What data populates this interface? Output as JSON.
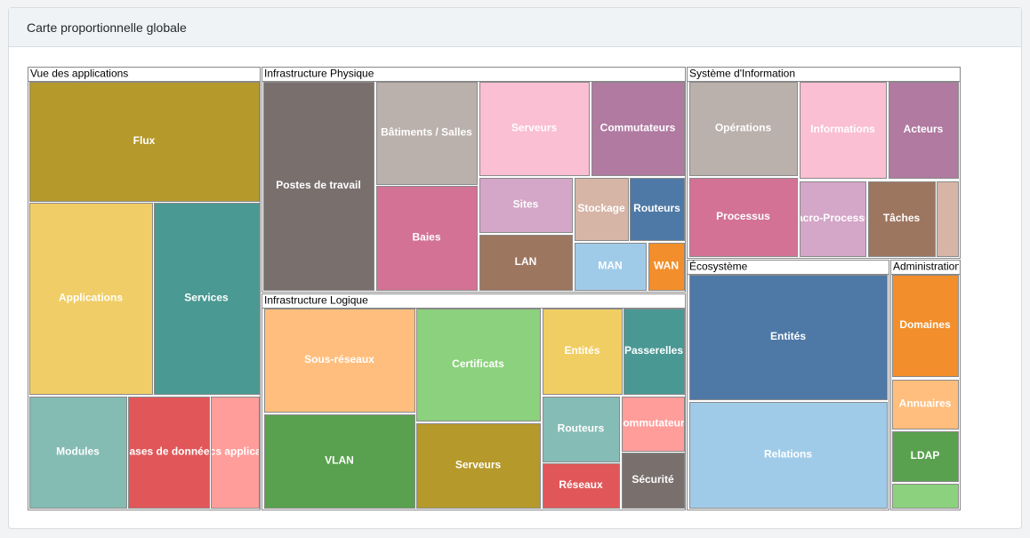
{
  "header": {
    "title": "Carte proportionnelle globale"
  },
  "treemap": {
    "groups": [
      {
        "name": "Vue des applications",
        "items": [
          "Flux",
          "Applications",
          "Services",
          "Modules",
          "Bases de données",
          "Blocs applicatifs"
        ]
      },
      {
        "name": "Infrastructure Physique",
        "items": [
          "Postes de travail",
          "Bâtiments / Salles",
          "Baies",
          "Serveurs",
          "Commutateurs",
          "Sites",
          "LAN",
          "Stockage",
          "Routeurs",
          "MAN",
          "WAN"
        ]
      },
      {
        "name": "Infrastructure Logique",
        "items": [
          "Sous-réseaux",
          "VLAN",
          "Certificats",
          "Serveurs",
          "Entités",
          "Passerelles",
          "Routeurs",
          "Commutateurs",
          "Réseaux",
          "Sécurité"
        ]
      },
      {
        "name": "Système d'Information",
        "items": [
          "Opérations",
          "Informations",
          "Acteurs",
          "Processus",
          "Macro-Processus",
          "Tâches"
        ]
      },
      {
        "name": "Écosystème",
        "items": [
          "Entités",
          "Relations"
        ]
      },
      {
        "name": "Administration",
        "items": [
          "Domaines",
          "Annuaires",
          "LDAP"
        ]
      }
    ]
  }
}
